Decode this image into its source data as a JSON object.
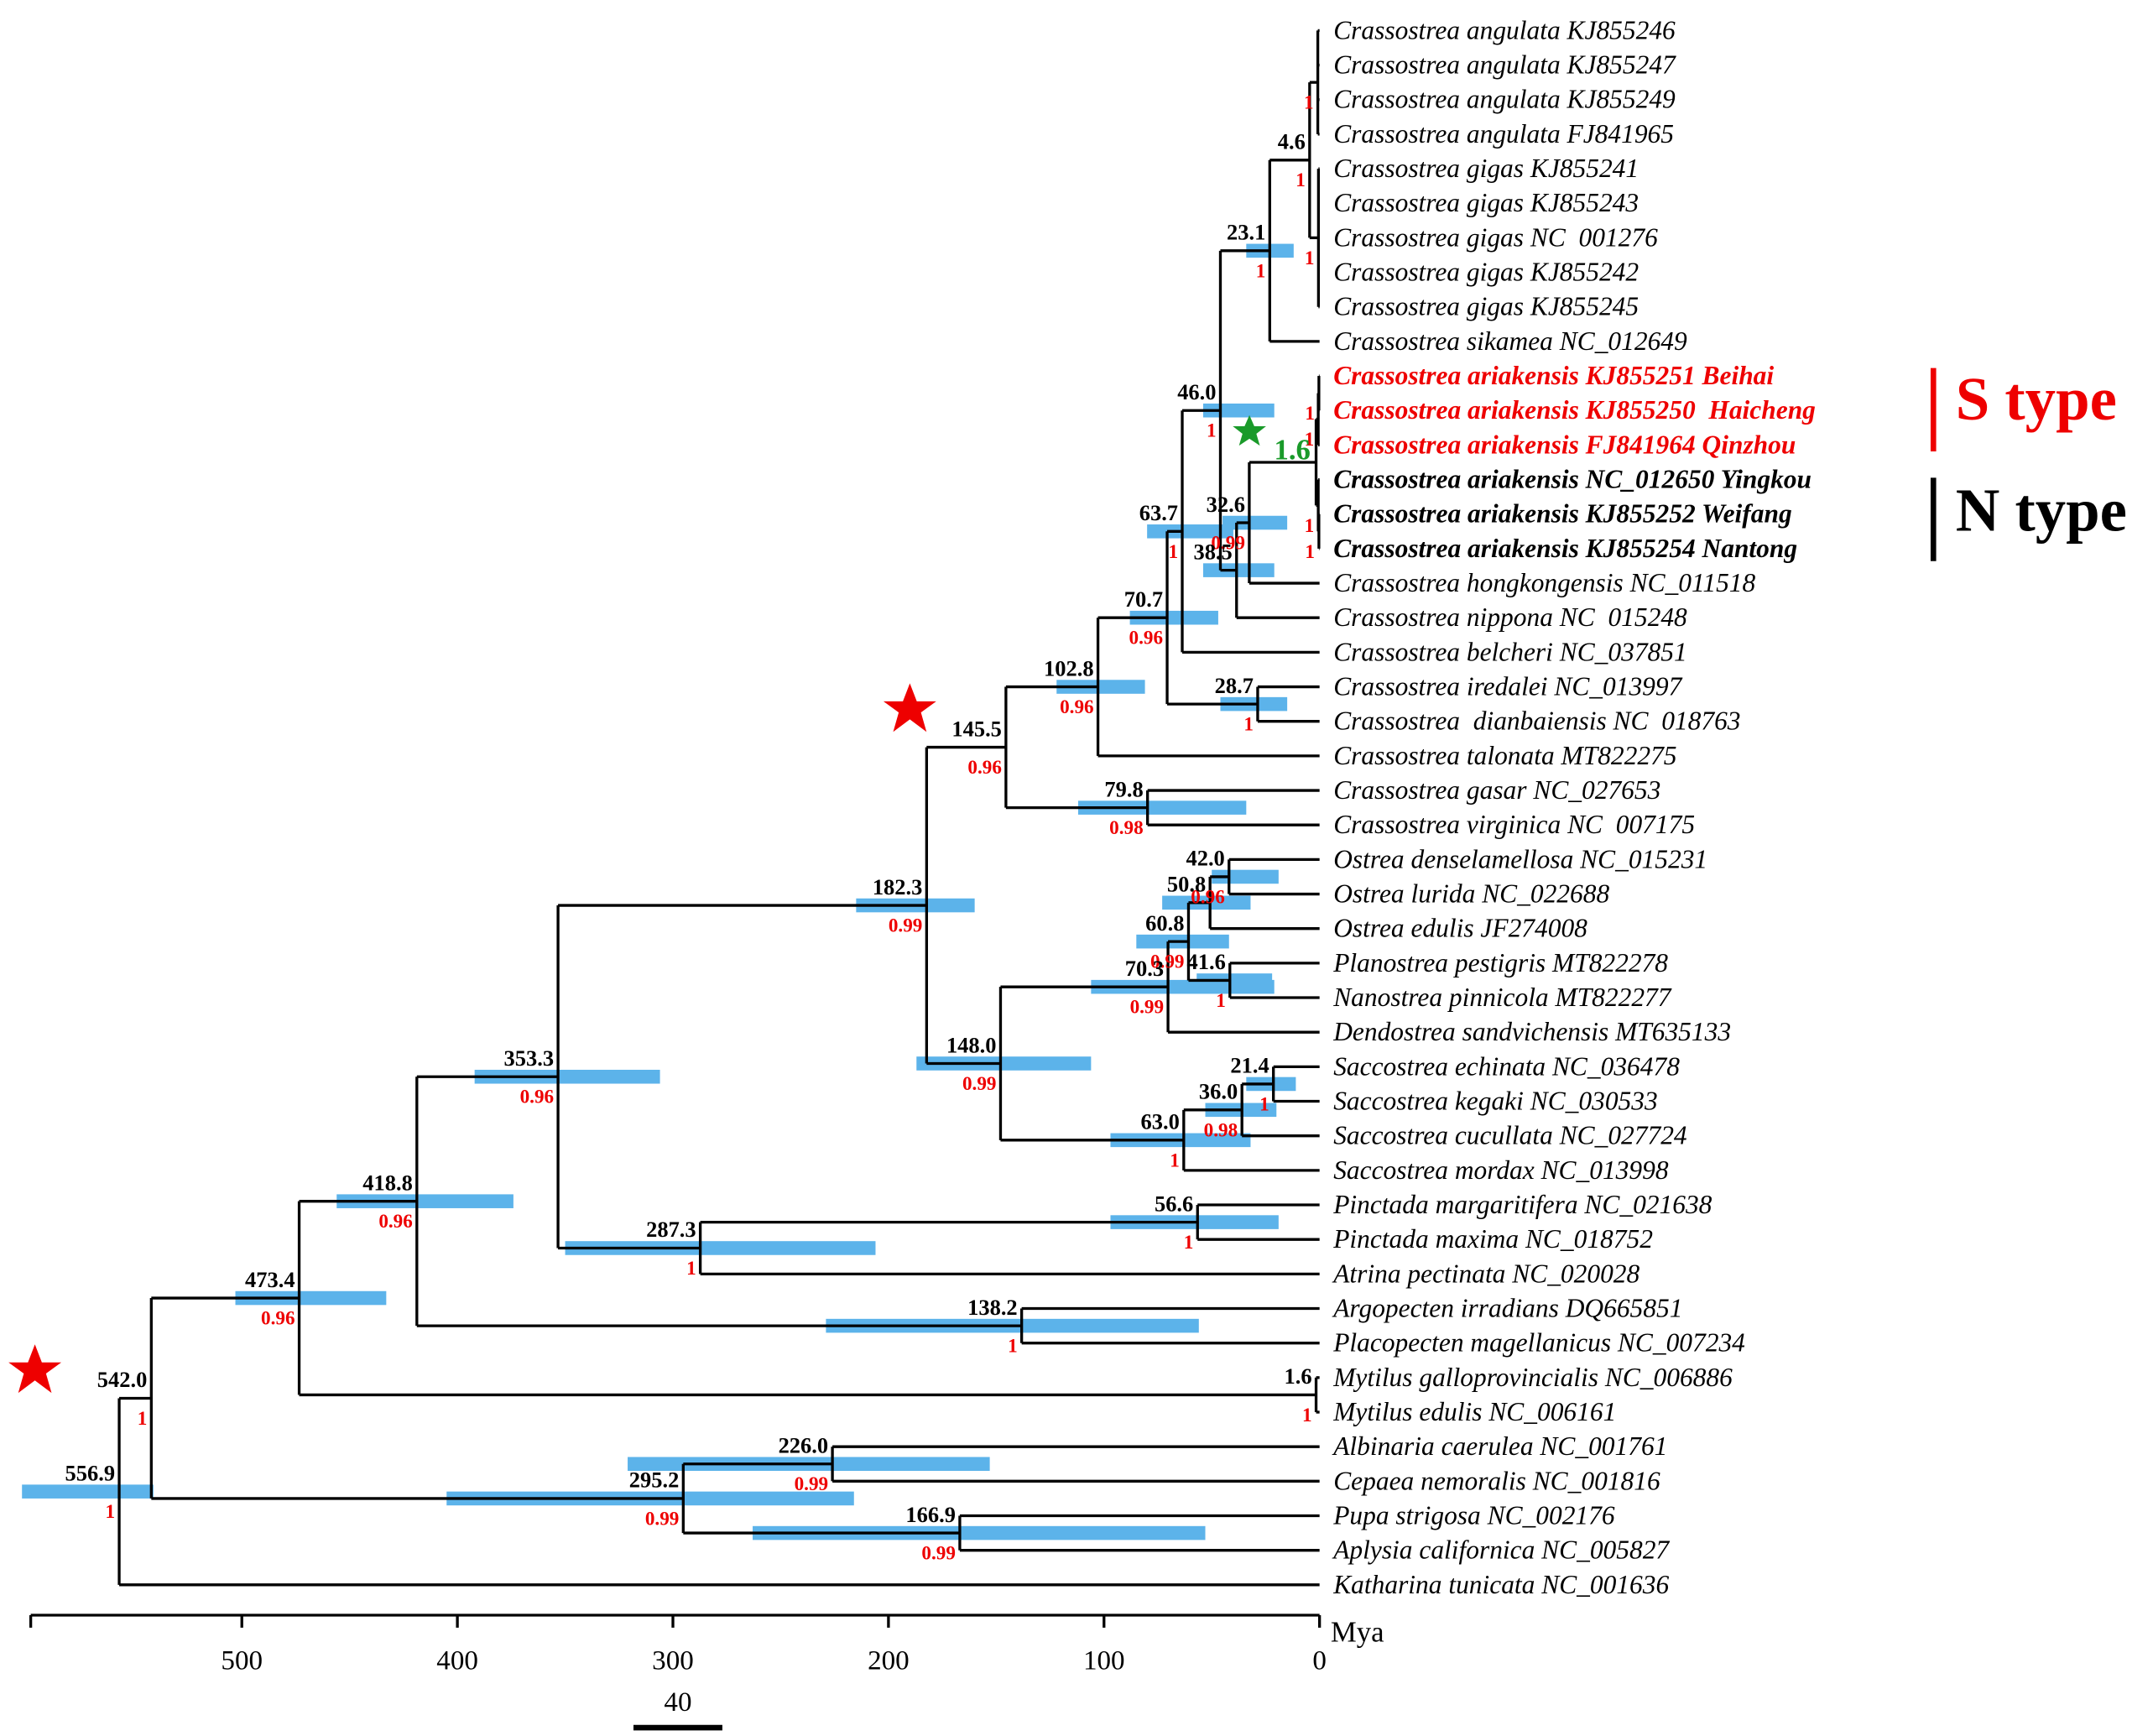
{
  "taxa": [
    "Crassostrea angulata KJ855246",
    "Crassostrea angulata KJ855247",
    "Crassostrea angulata KJ855249",
    "Crassostrea angulata FJ841965",
    "Crassostrea gigas KJ855241",
    "Crassostrea gigas KJ855243",
    "Crassostrea gigas NC  001276",
    "Crassostrea gigas KJ855242",
    "Crassostrea gigas KJ855245",
    "Crassostrea sikamea NC_012649",
    "Crassostrea ariakensis KJ855251 Beihai",
    "Crassostrea ariakensis KJ855250  Haicheng",
    "Crassostrea ariakensis FJ841964 Qinzhou",
    "Crassostrea ariakensis NC_012650 Yingkou",
    "Crassostrea ariakensis KJ855252 Weifang",
    "Crassostrea ariakensis KJ855254 Nantong",
    "Crassostrea hongkongensis NC_011518",
    "Crassostrea nippona NC  015248",
    "Crassostrea belcheri NC_037851",
    "Crassostrea iredalei NC_013997",
    "Crassostrea  dianbaiensis NC  018763",
    "Crassostrea talonata MT822275",
    "Crassostrea gasar NC_027653",
    "Crassostrea virginica NC  007175",
    "Ostrea denselamellosa NC_015231",
    "Ostrea lurida NC_022688",
    "Ostrea edulis JF274008",
    "Planostrea pestigris MT822278",
    "Nanostrea pinnicola MT822277",
    "Dendostrea sandvichensis MT635133",
    "Saccostrea echinata NC_036478",
    "Saccostrea kegaki NC_030533",
    "Saccostrea cucullata NC_027724",
    "Saccostrea mordax NC_013998",
    "Pinctada margaritifera NC_021638",
    "Pinctada maxima NC_018752",
    "Atrina pectinata NC_020028",
    "Argopecten irradians DQ665851",
    "Placopecten magellanicus NC_007234",
    "Mytilus galloprovincialis NC_006886",
    "Mytilus edulis NC_006161",
    "Albinaria caerulea NC_001761",
    "Cepaea nemoralis NC_001816",
    "Pupa strigosa NC_002176",
    "Aplysia californica NC_005827",
    "Katharina tunicata NC_001636"
  ],
  "nodes": [
    {
      "age": "556.9",
      "support": "1",
      "hpd": [
        541,
        602
      ]
    },
    {
      "age": "542.0",
      "support": "1"
    },
    {
      "age": "473.4",
      "support": "0.96",
      "hpd": [
        433,
        503
      ]
    },
    {
      "age": "418.8",
      "support": "0.96",
      "hpd": [
        374,
        456
      ]
    },
    {
      "age": "353.3",
      "support": "0.96",
      "hpd": [
        306,
        392
      ]
    },
    {
      "age": "182.3",
      "support": "0.99",
      "hpd": [
        160,
        215
      ]
    },
    {
      "age": "145.5",
      "support": "0.96"
    },
    {
      "age": "102.8",
      "support": "0.96",
      "hpd": [
        81,
        122
      ]
    },
    {
      "age": "70.7",
      "support": "0.96",
      "hpd": [
        47,
        88
      ]
    },
    {
      "age": "63.7",
      "support": "1",
      "hpd": [
        40,
        80
      ]
    },
    {
      "age": "46.0",
      "support": "1",
      "hpd": [
        21,
        54
      ]
    },
    {
      "age": "23.1",
      "support": "1",
      "hpd": [
        12,
        34
      ]
    },
    {
      "age": "4.6",
      "support": "1"
    },
    {
      "age": "38.5",
      "hpd": [
        21,
        54
      ]
    },
    {
      "age": "32.6",
      "support": "0.99",
      "hpd": [
        15,
        45
      ]
    },
    {
      "age": "1.6"
    },
    {
      "age": "28.7",
      "support": "1",
      "hpd": [
        15,
        46
      ]
    },
    {
      "age": "79.8",
      "support": "0.98",
      "hpd": [
        34,
        112
      ]
    },
    {
      "age": "148.0",
      "support": "0.99",
      "hpd": [
        106,
        187
      ]
    },
    {
      "age": "70.3",
      "support": "0.99",
      "hpd": [
        21,
        106
      ]
    },
    {
      "age": "60.8",
      "support": "0.99",
      "hpd": [
        42,
        85
      ]
    },
    {
      "age": "50.8",
      "hpd": [
        32,
        73
      ]
    },
    {
      "age": "42.0",
      "support": "0.96",
      "hpd": [
        19,
        50
      ]
    },
    {
      "age": "41.6",
      "support": "1",
      "hpd": [
        22,
        57
      ]
    },
    {
      "age": "63.0",
      "support": "1",
      "hpd": [
        32,
        97
      ]
    },
    {
      "age": "36.0",
      "support": "0.98",
      "hpd": [
        20,
        53
      ]
    },
    {
      "age": "21.4",
      "support": "1",
      "hpd": [
        11,
        34
      ]
    },
    {
      "age": "287.3",
      "support": "1",
      "hpd": [
        206,
        350
      ]
    },
    {
      "age": "56.6",
      "support": "1",
      "hpd": [
        19,
        97
      ]
    },
    {
      "age": "138.2",
      "support": "1",
      "hpd": [
        56,
        229
      ]
    },
    {
      "age": "1.6",
      "support": "1"
    },
    {
      "age": "295.2",
      "support": "0.99",
      "hpd": [
        216,
        405
      ]
    },
    {
      "age": "226.0",
      "support": "0.99",
      "hpd": [
        153,
        321
      ]
    },
    {
      "age": "166.9",
      "support": "0.99",
      "hpd": [
        53,
        263
      ]
    },
    {
      "support": "1"
    },
    {
      "support": "1"
    },
    {
      "support": "1"
    },
    {
      "support": "1"
    },
    {
      "support": "1"
    },
    {
      "support": "1"
    }
  ],
  "groups": [
    "S type",
    "N type"
  ],
  "axis": {
    "ticks": [
      500,
      400,
      300,
      200,
      100,
      0
    ],
    "label": "Mya"
  },
  "scale_bar": "40"
}
